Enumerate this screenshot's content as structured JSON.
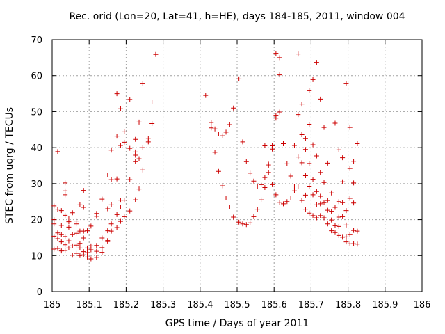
{
  "chart_data": {
    "type": "scatter",
    "title": "Rec. orid (Lon=20, Lat=41, h=HE), days 184-185, 2011, window 004",
    "xlabel": "GPS time / Days of year 2011",
    "ylabel": "STEC from uqrg / TECUs",
    "xlim": [
      185,
      186
    ],
    "ylim": [
      0,
      70
    ],
    "grid": true,
    "marker": "plus",
    "x_ticks": [
      {
        "value": 185,
        "label": "185"
      },
      {
        "value": 185.1,
        "label": "185.1"
      },
      {
        "value": 185.2,
        "label": "185.2"
      },
      {
        "value": 185.3,
        "label": "185.3"
      },
      {
        "value": 185.4,
        "label": "185.4"
      },
      {
        "value": 185.5,
        "label": "185.5"
      },
      {
        "value": 185.6,
        "label": "185.6"
      },
      {
        "value": 185.7,
        "label": "185.7"
      },
      {
        "value": 185.8,
        "label": "185.8"
      },
      {
        "value": 185.9,
        "label": "185.9"
      },
      {
        "value": 186,
        "label": "186"
      }
    ],
    "y_ticks": [
      {
        "value": 0,
        "label": "0"
      },
      {
        "value": 10,
        "label": "10"
      },
      {
        "value": 20,
        "label": "20"
      },
      {
        "value": 30,
        "label": "30"
      },
      {
        "value": 40,
        "label": "40"
      },
      {
        "value": 50,
        "label": "50"
      },
      {
        "value": 60,
        "label": "60"
      },
      {
        "value": 70,
        "label": "70"
      }
    ],
    "series": [
      {
        "name": "STEC",
        "color": "#cc0000",
        "points": [
          [
            185.005,
            11.8
          ],
          [
            185.005,
            15.4
          ],
          [
            185.005,
            18.8
          ],
          [
            185.005,
            20.0
          ],
          [
            185.005,
            23.8
          ],
          [
            185.015,
            12.0
          ],
          [
            185.015,
            14.7
          ],
          [
            185.015,
            16.3
          ],
          [
            185.015,
            22.9
          ],
          [
            185.015,
            38.9
          ],
          [
            185.025,
            11.3
          ],
          [
            185.025,
            13.8
          ],
          [
            185.025,
            15.8
          ],
          [
            185.025,
            18.4
          ],
          [
            185.025,
            22.5
          ],
          [
            185.035,
            11.4
          ],
          [
            185.035,
            13.0
          ],
          [
            185.035,
            15.3
          ],
          [
            185.035,
            21.2
          ],
          [
            185.035,
            26.9
          ],
          [
            185.035,
            28.0
          ],
          [
            185.035,
            30.2
          ],
          [
            185.045,
            12.1
          ],
          [
            185.045,
            14.1
          ],
          [
            185.045,
            17.9
          ],
          [
            185.045,
            19.4
          ],
          [
            185.045,
            20.4
          ],
          [
            185.055,
            10.1
          ],
          [
            185.055,
            12.7
          ],
          [
            185.055,
            15.8
          ],
          [
            185.055,
            21.9
          ],
          [
            185.065,
            10.6
          ],
          [
            185.065,
            12.9
          ],
          [
            185.065,
            16.2
          ],
          [
            185.065,
            18.8
          ],
          [
            185.065,
            19.6
          ],
          [
            185.075,
            10.0
          ],
          [
            185.075,
            12.1
          ],
          [
            185.075,
            13.4
          ],
          [
            185.075,
            16.8
          ],
          [
            185.075,
            24.1
          ],
          [
            185.085,
            10.2
          ],
          [
            185.085,
            11.1
          ],
          [
            185.085,
            14.9
          ],
          [
            185.085,
            16.8
          ],
          [
            185.085,
            23.4
          ],
          [
            185.085,
            28.1
          ],
          [
            185.095,
            9.6
          ],
          [
            185.095,
            10.8
          ],
          [
            185.095,
            12.1
          ],
          [
            185.095,
            16.9
          ],
          [
            185.105,
            9.1
          ],
          [
            185.105,
            11.6
          ],
          [
            185.105,
            12.7
          ],
          [
            185.105,
            18.2
          ],
          [
            185.12,
            9.5
          ],
          [
            185.12,
            11.2
          ],
          [
            185.12,
            12.8
          ],
          [
            185.12,
            20.9
          ],
          [
            185.12,
            21.7
          ],
          [
            185.135,
            10.9
          ],
          [
            185.135,
            12.2
          ],
          [
            185.135,
            14.9
          ],
          [
            185.135,
            25.7
          ],
          [
            185.15,
            13.9
          ],
          [
            185.15,
            14.2
          ],
          [
            185.15,
            16.9
          ],
          [
            185.15,
            23.0
          ],
          [
            185.15,
            32.4
          ],
          [
            185.16,
            16.8
          ],
          [
            185.16,
            18.8
          ],
          [
            185.16,
            24.1
          ],
          [
            185.16,
            31.1
          ],
          [
            185.16,
            39.3
          ],
          [
            185.175,
            17.8
          ],
          [
            185.175,
            21.4
          ],
          [
            185.175,
            31.3
          ],
          [
            185.175,
            43.2
          ],
          [
            185.175,
            55.0
          ],
          [
            185.185,
            19.5
          ],
          [
            185.185,
            23.5
          ],
          [
            185.185,
            25.4
          ],
          [
            185.185,
            40.6
          ],
          [
            185.185,
            50.8
          ],
          [
            185.195,
            20.8
          ],
          [
            185.195,
            25.4
          ],
          [
            185.195,
            41.5
          ],
          [
            185.195,
            44.4
          ],
          [
            185.21,
            22.4
          ],
          [
            185.21,
            31.1
          ],
          [
            185.21,
            39.8
          ],
          [
            185.21,
            53.4
          ],
          [
            185.225,
            25.5
          ],
          [
            185.225,
            36.1
          ],
          [
            185.225,
            37.9
          ],
          [
            185.225,
            38.8
          ],
          [
            185.225,
            42.3
          ],
          [
            185.235,
            28.5
          ],
          [
            185.235,
            36.9
          ],
          [
            185.235,
            47.1
          ],
          [
            185.245,
            33.8
          ],
          [
            185.245,
            40.0
          ],
          [
            185.245,
            57.9
          ],
          [
            185.26,
            41.6
          ],
          [
            185.26,
            42.6
          ],
          [
            185.27,
            46.7
          ],
          [
            185.27,
            52.7
          ],
          [
            185.28,
            65.9
          ],
          [
            185.415,
            54.5
          ],
          [
            185.43,
            45.5
          ],
          [
            185.43,
            47.0
          ],
          [
            185.44,
            38.7
          ],
          [
            185.44,
            45.2
          ],
          [
            185.45,
            33.4
          ],
          [
            185.45,
            43.8
          ],
          [
            185.46,
            29.4
          ],
          [
            185.46,
            43.3
          ],
          [
            185.47,
            26.0
          ],
          [
            185.47,
            44.3
          ],
          [
            185.48,
            23.5
          ],
          [
            185.48,
            46.4
          ],
          [
            185.49,
            20.7
          ],
          [
            185.49,
            51.0
          ],
          [
            185.505,
            19.3
          ],
          [
            185.505,
            59.1
          ],
          [
            185.515,
            18.8
          ],
          [
            185.515,
            41.6
          ],
          [
            185.525,
            18.6
          ],
          [
            185.525,
            36.1
          ],
          [
            185.535,
            19.1
          ],
          [
            185.535,
            32.9
          ],
          [
            185.545,
            20.8
          ],
          [
            185.545,
            30.7
          ],
          [
            185.555,
            22.9
          ],
          [
            185.555,
            29.3
          ],
          [
            185.565,
            25.5
          ],
          [
            185.565,
            29.7
          ],
          [
            185.575,
            28.9
          ],
          [
            185.575,
            31.7
          ],
          [
            185.575,
            40.5
          ],
          [
            185.585,
            33.1
          ],
          [
            185.585,
            35.0
          ],
          [
            185.585,
            35.4
          ],
          [
            185.595,
            29.7
          ],
          [
            185.595,
            39.6
          ],
          [
            185.595,
            40.5
          ],
          [
            185.605,
            26.9
          ],
          [
            185.605,
            48.2
          ],
          [
            185.605,
            49.0
          ],
          [
            185.605,
            66.2
          ],
          [
            185.615,
            24.8
          ],
          [
            185.615,
            49.9
          ],
          [
            185.615,
            60.2
          ],
          [
            185.615,
            65.0
          ],
          [
            185.625,
            24.4
          ],
          [
            185.625,
            41.1
          ],
          [
            185.635,
            25.0
          ],
          [
            185.635,
            35.5
          ],
          [
            185.645,
            26.0
          ],
          [
            185.645,
            32.1
          ],
          [
            185.655,
            28.0
          ],
          [
            185.655,
            29.3
          ],
          [
            185.655,
            40.6
          ],
          [
            185.665,
            29.3
          ],
          [
            185.665,
            37.4
          ],
          [
            185.665,
            49.2
          ],
          [
            185.665,
            66.0
          ],
          [
            185.675,
            25.3
          ],
          [
            185.675,
            35.8
          ],
          [
            185.675,
            43.6
          ],
          [
            185.675,
            52.1
          ],
          [
            185.685,
            22.9
          ],
          [
            185.685,
            26.8
          ],
          [
            185.685,
            32.2
          ],
          [
            185.685,
            39.5
          ],
          [
            185.685,
            42.5
          ],
          [
            185.695,
            21.8
          ],
          [
            185.695,
            29.1
          ],
          [
            185.695,
            35.6
          ],
          [
            185.695,
            46.5
          ],
          [
            185.695,
            55.8
          ],
          [
            185.705,
            21.1
          ],
          [
            185.705,
            26.9
          ],
          [
            185.705,
            31.2
          ],
          [
            185.705,
            40.8
          ],
          [
            185.705,
            58.9
          ],
          [
            185.715,
            20.5
          ],
          [
            185.715,
            24.1
          ],
          [
            185.715,
            27.8
          ],
          [
            185.715,
            37.7
          ],
          [
            185.715,
            63.7
          ],
          [
            185.725,
            21.1
          ],
          [
            185.725,
            24.4
          ],
          [
            185.725,
            26.5
          ],
          [
            185.725,
            33.1
          ],
          [
            185.725,
            53.5
          ],
          [
            185.735,
            20.5
          ],
          [
            185.735,
            24.7
          ],
          [
            185.735,
            30.3
          ],
          [
            185.735,
            45.6
          ],
          [
            185.745,
            18.8
          ],
          [
            185.745,
            22.6
          ],
          [
            185.745,
            25.3
          ],
          [
            185.745,
            35.7
          ],
          [
            185.755,
            16.9
          ],
          [
            185.755,
            19.9
          ],
          [
            185.755,
            22.3
          ],
          [
            185.755,
            27.4
          ],
          [
            185.765,
            16.4
          ],
          [
            185.765,
            18.3
          ],
          [
            185.765,
            23.4
          ],
          [
            185.765,
            46.8
          ],
          [
            185.775,
            15.6
          ],
          [
            185.775,
            18.1
          ],
          [
            185.775,
            20.7
          ],
          [
            185.775,
            25.0
          ],
          [
            185.775,
            39.4
          ],
          [
            185.785,
            15.1
          ],
          [
            185.785,
            20.8
          ],
          [
            185.785,
            24.7
          ],
          [
            185.785,
            30.5
          ],
          [
            185.785,
            37.2
          ],
          [
            185.795,
            13.8
          ],
          [
            185.795,
            15.2
          ],
          [
            185.795,
            18.5
          ],
          [
            185.795,
            22.5
          ],
          [
            185.795,
            57.9
          ],
          [
            185.805,
            13.3
          ],
          [
            185.805,
            15.8
          ],
          [
            185.805,
            25.9
          ],
          [
            185.805,
            34.2
          ],
          [
            185.805,
            45.6
          ],
          [
            185.815,
            13.3
          ],
          [
            185.815,
            17.0
          ],
          [
            185.815,
            24.6
          ],
          [
            185.815,
            30.2
          ],
          [
            185.815,
            36.2
          ],
          [
            185.825,
            13.2
          ],
          [
            185.825,
            16.8
          ],
          [
            185.825,
            41.1
          ]
        ]
      }
    ]
  }
}
